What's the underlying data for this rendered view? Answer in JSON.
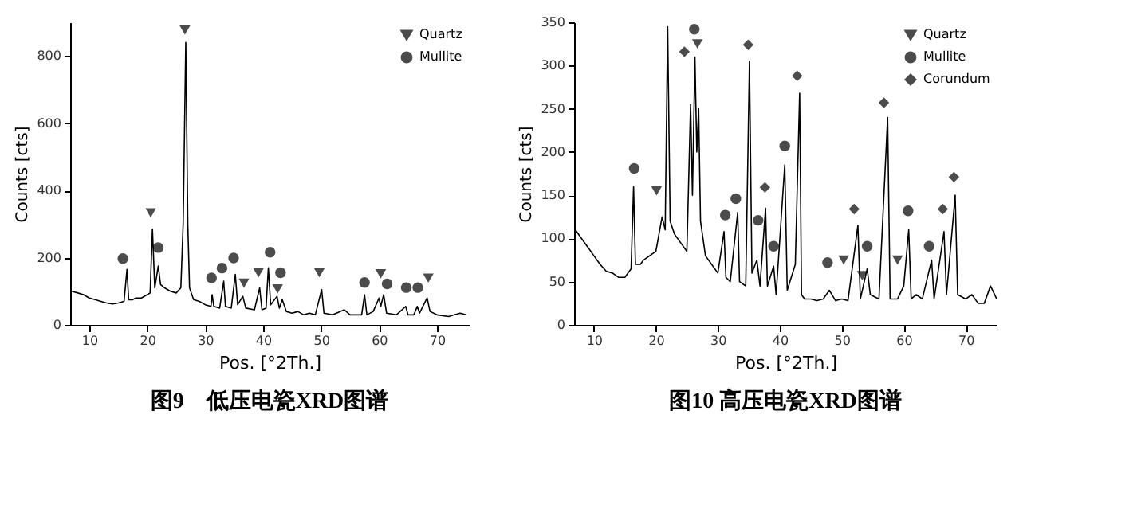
{
  "chart_data": [
    {
      "type": "line",
      "title": "图9　低压电瓷XRD图谱",
      "xlabel": "Pos. [°2Th.]",
      "ylabel": "Counts [cts]",
      "xlim": [
        6.7,
        75.5
      ],
      "xticks": [
        10,
        20,
        30,
        40,
        50,
        60,
        70
      ],
      "ylim": [
        0,
        900
      ],
      "yticks": [
        0,
        200,
        400,
        600,
        800
      ],
      "legend": "top right",
      "series": [
        {
          "type": "line",
          "color": "#000000",
          "x": [
            7,
            8,
            9,
            10,
            11,
            12,
            13,
            14,
            15,
            16,
            16.5,
            16.8,
            17.5,
            18,
            19,
            20,
            20.5,
            20.9,
            21.3,
            21.9,
            22.3,
            23,
            24,
            25,
            25.8,
            26.2,
            26.65,
            27.0,
            27.3,
            28,
            29,
            30,
            31,
            31.2,
            31.5,
            32.5,
            33.2,
            33.5,
            34.5,
            35.2,
            35.6,
            36.5,
            37,
            38.5,
            39.4,
            39.8,
            40.5,
            40.9,
            41.3,
            42.4,
            42.8,
            43.3,
            44,
            45,
            46,
            47,
            48,
            49,
            50.1,
            50.5,
            52,
            54,
            55,
            57,
            57.5,
            57.9,
            59,
            60,
            60.3,
            60.8,
            61.3,
            63,
            64.6,
            65,
            66,
            66.6,
            67,
            68,
            68.3,
            68.8,
            70,
            72,
            73,
            74,
            75
          ],
          "values": [
            100,
            95,
            90,
            80,
            75,
            70,
            65,
            62,
            65,
            70,
            165,
            75,
            75,
            80,
            80,
            90,
            95,
            285,
            110,
            175,
            120,
            110,
            100,
            95,
            110,
            300,
            840,
            300,
            110,
            75,
            70,
            60,
            55,
            90,
            55,
            50,
            130,
            55,
            50,
            150,
            60,
            85,
            50,
            45,
            110,
            45,
            50,
            170,
            60,
            85,
            50,
            75,
            40,
            35,
            40,
            30,
            35,
            30,
            105,
            35,
            30,
            45,
            30,
            30,
            90,
            30,
            40,
            80,
            55,
            90,
            35,
            30,
            55,
            30,
            30,
            55,
            35,
            70,
            80,
            40,
            30,
            25,
            30,
            35,
            30
          ]
        },
        {
          "type": "scatter",
          "name": "Quartz",
          "color": "#000000",
          "marker": "triangle",
          "x": [
            26.5,
            20.6,
            36.7,
            39.2,
            42.5,
            49.7,
            60.3,
            68.5
          ],
          "values": [
            877,
            333,
            124,
            155,
            107,
            155,
            152,
            139
          ]
        },
        {
          "type": "scatter",
          "name": "Mullite",
          "color": "#000000",
          "marker": "circle",
          "x": [
            15.8,
            21.9,
            31.1,
            32.9,
            34.9,
            41.2,
            43.0,
            57.5,
            61.4,
            64.7,
            66.7
          ],
          "values": [
            197,
            230,
            140,
            169,
            199,
            216,
            155,
            126,
            122,
            111,
            111
          ]
        }
      ]
    },
    {
      "type": "line",
      "title": "图10 高压电瓷XRD图谱",
      "xlabel": "Pos. [°2Th.]",
      "ylabel": "Counts [cts]",
      "xlim": [
        6.8,
        75
      ],
      "xticks": [
        10,
        20,
        30,
        40,
        50,
        60,
        70
      ],
      "ylim": [
        0,
        350
      ],
      "yticks": [
        0,
        50,
        100,
        150,
        200,
        250,
        300,
        350
      ],
      "legend": "top right",
      "series": [
        {
          "type": "line",
          "color": "#000000",
          "x": [
            7,
            8,
            9,
            10,
            11,
            12,
            13,
            14,
            15,
            16,
            16.4,
            16.7,
            17.5,
            18,
            19,
            20,
            21,
            21.5,
            21.9,
            22.3,
            23,
            24,
            25,
            25.6,
            25.9,
            26.3,
            26.6,
            26.9,
            27.2,
            28,
            29,
            30,
            31,
            31.3,
            32,
            33.2,
            33.5,
            34.5,
            35.1,
            35.5,
            36.3,
            36.8,
            37.7,
            38,
            39,
            39.4,
            40.8,
            41.2,
            42.5,
            43.2,
            43.5,
            44,
            45,
            46,
            47,
            48,
            49,
            50,
            51,
            52.6,
            53,
            54.1,
            54.6,
            56,
            57.4,
            57.8,
            59,
            60,
            60.8,
            61.2,
            62,
            63,
            64.5,
            64.9,
            66.5,
            66.9,
            68.3,
            68.7,
            70,
            71,
            72,
            73,
            74,
            75
          ],
          "values": [
            110,
            100,
            90,
            80,
            70,
            62,
            60,
            55,
            55,
            65,
            160,
            70,
            70,
            75,
            80,
            85,
            125,
            110,
            345,
            120,
            105,
            95,
            85,
            255,
            150,
            310,
            200,
            250,
            120,
            80,
            70,
            60,
            108,
            55,
            50,
            130,
            50,
            45,
            305,
            60,
            75,
            45,
            135,
            45,
            68,
            35,
            185,
            40,
            70,
            268,
            35,
            30,
            30,
            28,
            30,
            40,
            28,
            30,
            28,
            115,
            30,
            65,
            35,
            30,
            240,
            30,
            30,
            45,
            110,
            30,
            35,
            30,
            75,
            30,
            108,
            35,
            150,
            35,
            30,
            35,
            25,
            25,
            45,
            30
          ]
        },
        {
          "type": "scatter",
          "name": "Quartz",
          "color": "#000000",
          "marker": "triangle",
          "x": [
            20.1,
            26.7,
            50.3,
            53.3,
            59.0
          ],
          "values": [
            155,
            325,
            75,
            57,
            75
          ]
        },
        {
          "type": "scatter",
          "name": "Mullite",
          "color": "#000000",
          "marker": "circle",
          "x": [
            16.5,
            26.2,
            31.2,
            32.9,
            36.5,
            39.0,
            40.8,
            47.7,
            54.1,
            60.7,
            64.1
          ],
          "values": [
            181,
            342,
            127,
            146,
            121,
            91,
            207,
            72,
            91,
            132,
            91
          ]
        },
        {
          "type": "scatter",
          "name": "Corundum",
          "color": "#000000",
          "marker": "diamond",
          "x": [
            24.6,
            34.9,
            37.6,
            42.8,
            52.0,
            56.8,
            66.3,
            68.1
          ],
          "values": [
            316,
            324,
            159,
            288,
            134,
            257,
            134,
            171
          ]
        }
      ]
    }
  ]
}
